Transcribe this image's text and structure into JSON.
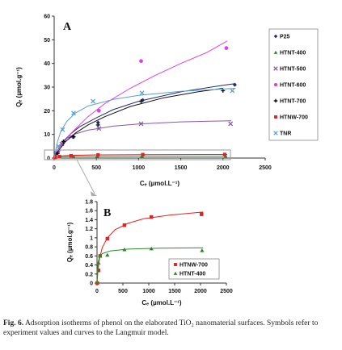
{
  "figure": {
    "caption_label": "Fig. 6.",
    "caption_text": "Adsorption isotherms of phenol on the elaborated TiO₂ nanomaterial surfaces. Symbols refer to experiment values and curves to the Langmuir model."
  },
  "chart_data": [
    {
      "panel": "A",
      "type": "scatter",
      "xlabel": "Cₑ (µmol.L⁻¹)",
      "ylabel": "Qₑ (µmol.g⁻¹)",
      "xlim": [
        0,
        2500
      ],
      "ylim": [
        0,
        60
      ],
      "xticks": [
        0,
        500,
        1000,
        1500,
        2000,
        2500
      ],
      "yticks": [
        0,
        10,
        20,
        30,
        40,
        50,
        60
      ],
      "legend_position": "right",
      "series": [
        {
          "name": "P25",
          "color": "#1f2a7a",
          "marker": "diamond",
          "points": [
            [
              25,
              2
            ],
            [
              100,
              6
            ],
            [
              230,
              9
            ],
            [
              520,
              15
            ],
            [
              1050,
              24.5
            ],
            [
              2140,
              31
            ]
          ],
          "curve": [
            [
              0,
              0
            ],
            [
              50,
              4
            ],
            [
              100,
              6.8
            ],
            [
              200,
              10.4
            ],
            [
              300,
              13.2
            ],
            [
              500,
              17
            ],
            [
              700,
              20.5
            ],
            [
              1000,
              24
            ],
            [
              1500,
              28
            ],
            [
              2000,
              30.8
            ],
            [
              2150,
              31.5
            ]
          ]
        },
        {
          "name": "HTNT-400",
          "color": "#2a8a2a",
          "marker": "triangle",
          "points": [
            [
              10,
              0.4
            ],
            [
              60,
              0.6
            ],
            [
              230,
              0.7
            ],
            [
              510,
              0.75
            ],
            [
              1040,
              0.75
            ],
            [
              2030,
              0.7
            ]
          ],
          "curve": [
            [
              0,
              0
            ],
            [
              15,
              0.42
            ],
            [
              40,
              0.6
            ],
            [
              100,
              0.68
            ],
            [
              300,
              0.73
            ],
            [
              1000,
              0.76
            ],
            [
              2050,
              0.77
            ]
          ]
        },
        {
          "name": "HTNT-500",
          "color": "#8855aa",
          "marker": "x",
          "points": [
            [
              30,
              2
            ],
            [
              90,
              6
            ],
            [
              200,
              9
            ],
            [
              530,
              12.5
            ],
            [
              1030,
              14.5
            ],
            [
              2090,
              14.5
            ]
          ],
          "curve": [
            [
              0,
              0
            ],
            [
              30,
              2.5
            ],
            [
              80,
              5.8
            ],
            [
              150,
              8.3
            ],
            [
              250,
              10.2
            ],
            [
              400,
              11.8
            ],
            [
              700,
              13.5
            ],
            [
              1000,
              14.4
            ],
            [
              1500,
              15.3
            ],
            [
              2100,
              15.8
            ]
          ]
        },
        {
          "name": "HTNT-600",
          "color": "#e040e0",
          "marker": "circle",
          "points": [
            [
              50,
              3
            ],
            [
              530,
              20
            ],
            [
              1030,
              41
            ],
            [
              2040,
              46.5
            ]
          ],
          "curve": [
            [
              0,
              0
            ],
            [
              100,
              6
            ],
            [
              200,
              10.5
            ],
            [
              400,
              17.5
            ],
            [
              600,
              23
            ],
            [
              900,
              29.5
            ],
            [
              1200,
              35
            ],
            [
              1500,
              40
            ],
            [
              1800,
              44.5
            ],
            [
              2050,
              49.5
            ]
          ]
        },
        {
          "name": "HTNT-700",
          "color": "#111111",
          "marker": "plus",
          "points": [
            [
              40,
              2
            ],
            [
              110,
              7
            ],
            [
              230,
              9
            ],
            [
              520,
              14
            ],
            [
              1030,
              24
            ],
            [
              2000,
              28.5
            ]
          ],
          "curve": [
            [
              0,
              0
            ],
            [
              60,
              3.5
            ],
            [
              130,
              6.8
            ],
            [
              250,
              10.5
            ],
            [
              400,
              14
            ],
            [
              600,
              17.5
            ],
            [
              900,
              21.8
            ],
            [
              1300,
              25.5
            ],
            [
              1700,
              28
            ],
            [
              2000,
              29.5
            ]
          ]
        },
        {
          "name": "HTNW-700",
          "color": "#e82020",
          "marker": "square",
          "points": [
            [
              10,
              0.3
            ],
            [
              65,
              0.6
            ],
            [
              200,
              1
            ],
            [
              520,
              1.3
            ],
            [
              1050,
              1.47
            ],
            [
              2020,
              1.52
            ]
          ],
          "curve": [
            [
              0,
              0
            ],
            [
              20,
              0.4
            ],
            [
              60,
              0.75
            ],
            [
              120,
              1
            ],
            [
              250,
              1.2
            ],
            [
              500,
              1.35
            ],
            [
              1000,
              1.47
            ],
            [
              2050,
              1.55
            ]
          ]
        },
        {
          "name": "TNR",
          "color": "#5aa0d0",
          "marker": "x",
          "points": [
            [
              50,
              5
            ],
            [
              100,
              12
            ],
            [
              230,
              19
            ],
            [
              460,
              24
            ],
            [
              1040,
              27.5
            ],
            [
              2110,
              28.5
            ]
          ],
          "curve": [
            [
              0,
              0
            ],
            [
              40,
              7
            ],
            [
              80,
              11.5
            ],
            [
              150,
              15.5
            ],
            [
              250,
              19
            ],
            [
              400,
              22
            ],
            [
              700,
              24.8
            ],
            [
              1000,
              26.5
            ],
            [
              1500,
              28.2
            ],
            [
              2150,
              29.5
            ]
          ]
        }
      ]
    },
    {
      "panel": "B",
      "type": "scatter",
      "xlabel": "Cₑ (µmol.L⁻¹)",
      "ylabel": "Qₑ (µmol.g⁻¹)",
      "xlim": [
        0,
        2500
      ],
      "ylim": [
        0,
        1.8
      ],
      "xticks": [
        0,
        500,
        1000,
        1500,
        2000,
        2500
      ],
      "yticks": [
        0,
        0.2,
        0.4,
        0.6,
        0.8,
        1,
        1.2,
        1.4,
        1.6,
        1.8
      ],
      "legend_position": "bottom-right",
      "series": [
        {
          "name": "HTNW-700",
          "color": "#e82020",
          "marker": "square",
          "points": [
            [
              5,
              0
            ],
            [
              30,
              0.28
            ],
            [
              60,
              0.6
            ],
            [
              200,
              0.98
            ],
            [
              530,
              1.28
            ],
            [
              1050,
              1.46
            ],
            [
              2020,
              1.52
            ]
          ],
          "curve": [
            [
              0,
              0
            ],
            [
              20,
              0.3
            ],
            [
              50,
              0.55
            ],
            [
              100,
              0.78
            ],
            [
              200,
              1.0
            ],
            [
              350,
              1.18
            ],
            [
              600,
              1.32
            ],
            [
              900,
              1.42
            ],
            [
              1400,
              1.5
            ],
            [
              2050,
              1.57
            ]
          ]
        },
        {
          "name": "HTNT-400",
          "color": "#2a8a2a",
          "marker": "triangle",
          "points": [
            [
              5,
              0.02
            ],
            [
              30,
              0.45
            ],
            [
              60,
              0.6
            ],
            [
              200,
              0.62
            ],
            [
              530,
              0.74
            ],
            [
              1050,
              0.76
            ],
            [
              2030,
              0.72
            ]
          ],
          "curve": [
            [
              0,
              0
            ],
            [
              10,
              0.3
            ],
            [
              25,
              0.48
            ],
            [
              50,
              0.58
            ],
            [
              100,
              0.65
            ],
            [
              250,
              0.71
            ],
            [
              600,
              0.75
            ],
            [
              1200,
              0.77
            ],
            [
              2050,
              0.78
            ]
          ]
        }
      ]
    }
  ]
}
